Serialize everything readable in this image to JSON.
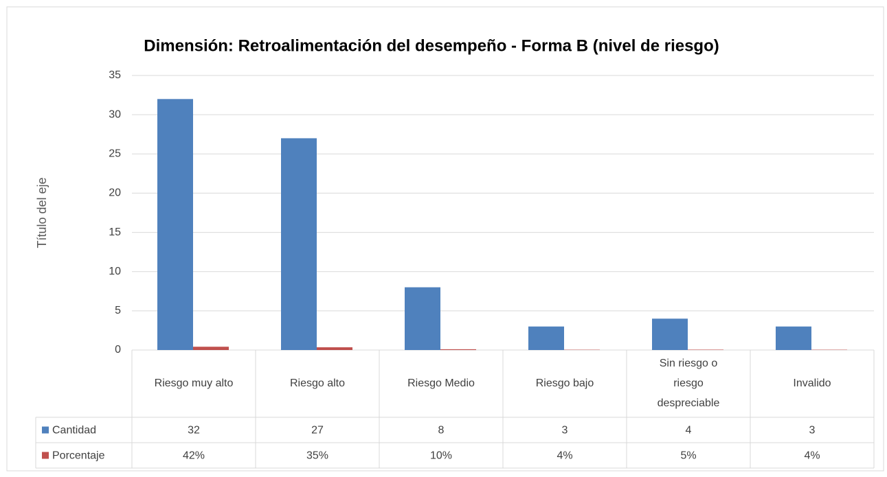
{
  "chart_data": {
    "type": "bar",
    "title": "Dimensión: Retroalimentación del desempeño - Forma B (nivel de riesgo)",
    "y_label": "Título del eje",
    "categories": [
      "Riesgo muy alto",
      "Riesgo alto",
      "Riesgo Medio",
      "Riesgo bajo",
      "Sin riesgo o riesgo despreciable",
      "Invalido"
    ],
    "series": [
      {
        "name": "Cantidad",
        "color": "#4f81bd",
        "values": [
          32,
          27,
          8,
          3,
          4,
          3
        ]
      },
      {
        "name": "Porcentaje",
        "color": "#c0504d",
        "values": [
          0.42,
          0.35,
          0.1,
          0.04,
          0.05,
          0.04
        ],
        "value_labels": [
          "42%",
          "35%",
          "10%",
          "4%",
          "5%",
          "4%"
        ]
      }
    ],
    "ylim": [
      0,
      35
    ],
    "yticks": [
      0,
      5,
      10,
      15,
      20,
      25,
      30,
      35
    ],
    "grid": true,
    "data_table": true
  }
}
